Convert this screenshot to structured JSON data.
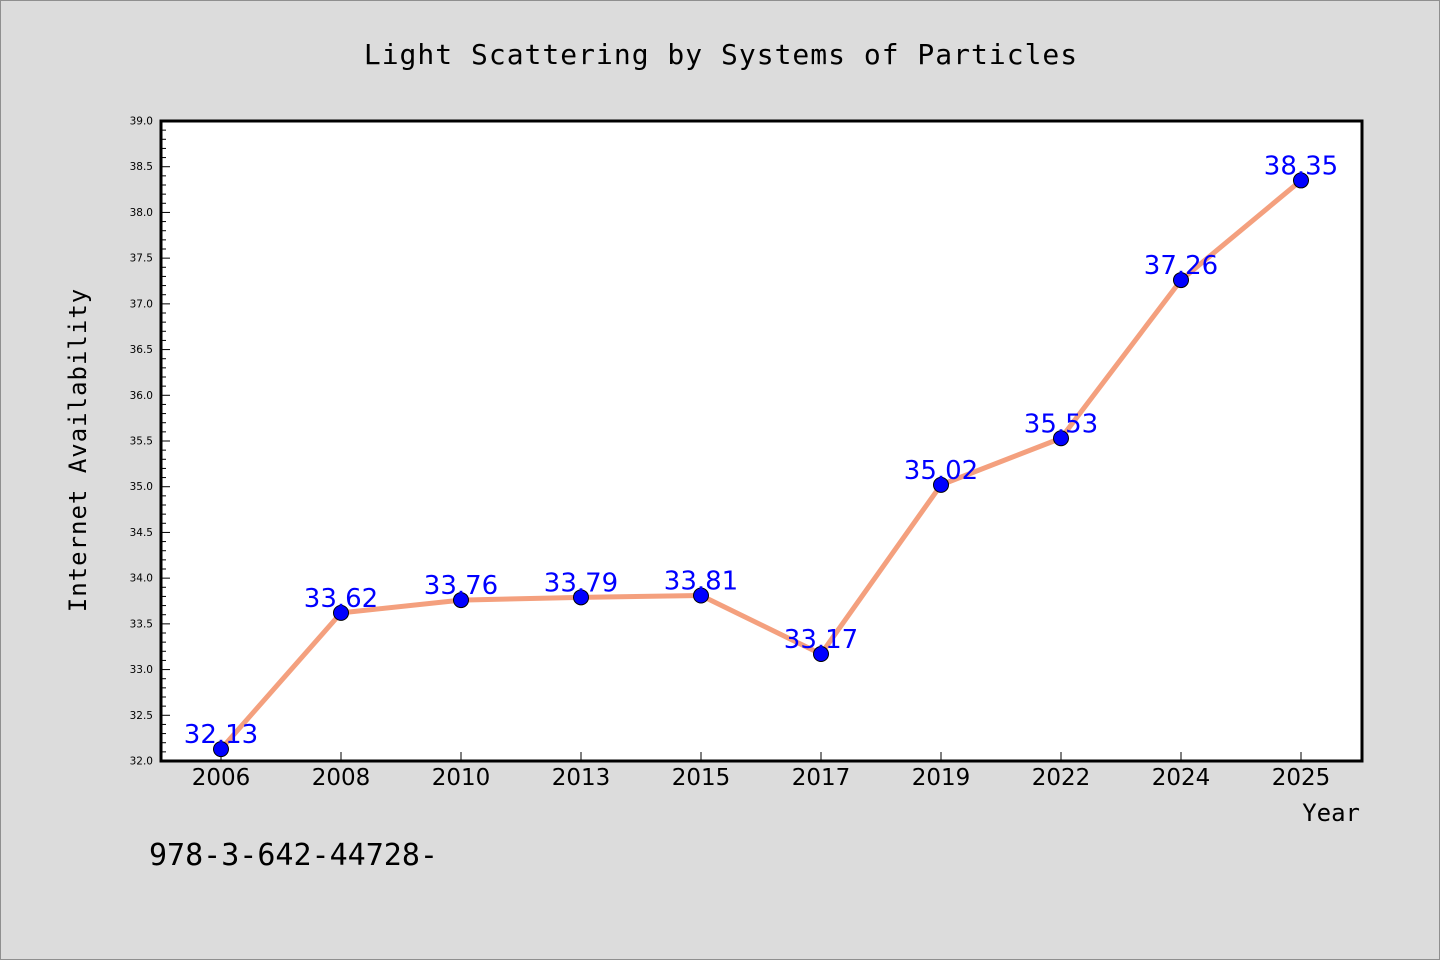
{
  "footer_text": "978-3-642-44728-",
  "chart_data": {
    "type": "line",
    "title": "Light Scattering by Systems of Particles",
    "xlabel": "Year",
    "ylabel": "Internet Availability",
    "categories": [
      "2006",
      "2008",
      "2010",
      "2013",
      "2015",
      "2017",
      "2019",
      "2022",
      "2024",
      "2025"
    ],
    "series": [
      {
        "values": [
          32.13,
          33.62,
          33.76,
          33.79,
          33.81,
          33.17,
          35.02,
          35.53,
          37.26,
          38.35
        ],
        "data_labels": [
          "32.13",
          "33.62",
          "33.76",
          "33.79",
          "33.81",
          "33.17",
          "35.02",
          "35.53",
          "37.26",
          "38.35"
        ],
        "line_color": "#f4a07e",
        "marker_color": "#0000ff"
      }
    ],
    "ylim": [
      32.0,
      39.0
    ],
    "yticks": [
      "32.0",
      "32.5",
      "33.0",
      "33.5",
      "34.0",
      "34.5",
      "35.0",
      "35.5",
      "36.0",
      "36.5",
      "37.0",
      "37.5",
      "38.0",
      "38.5",
      "39.0"
    ],
    "grid": false,
    "legend": "none",
    "colors": {
      "background": "#dcdcdc",
      "plot_background": "#ffffff",
      "label_text": "#0000ff"
    }
  }
}
